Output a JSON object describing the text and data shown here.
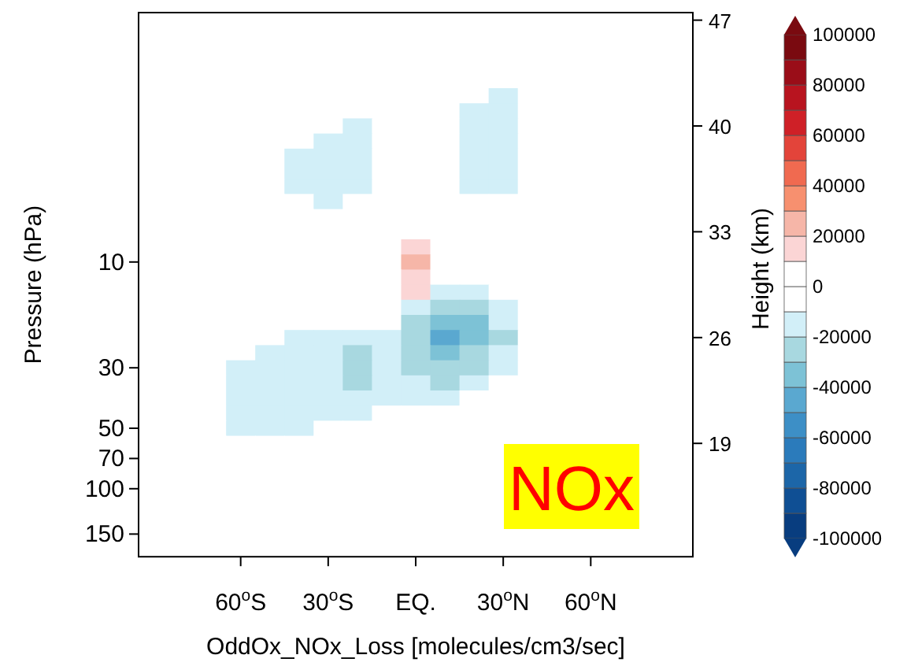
{
  "chart_data": {
    "type": "heatmap",
    "xlabel": "OddOx_NOx_Loss [molecules/cm3/sec]",
    "ylabel": "Pressure (hPa)",
    "y2label": "Height (km)",
    "annotations": [
      "NOx"
    ],
    "categories": [
      null,
      null,
      null,
      "60$^{o}$S",
      null,
      null,
      "30$^{o}$S",
      null,
      null,
      "EQ.",
      null,
      null,
      "30$^{o}$N",
      null,
      null,
      "60$^{o}$N",
      null,
      null,
      null
    ],
    "y_categories": [
      null,
      null,
      null,
      null,
      null,
      null,
      null,
      null,
      null,
      null,
      null,
      null,
      null,
      null,
      null,
      null,
      "10",
      null,
      null,
      null,
      null,
      null,
      null,
      "30",
      null,
      null,
      null,
      "50",
      null,
      "70",
      null,
      "100",
      null,
      null,
      "150",
      null
    ],
    "y2_categories": [
      "47",
      null,
      null,
      null,
      null,
      null,
      null,
      "40",
      null,
      null,
      null,
      null,
      null,
      null,
      "33",
      null,
      null,
      null,
      null,
      null,
      null,
      "26",
      null,
      null,
      null,
      null,
      null,
      null,
      "19",
      null,
      null,
      null,
      null,
      null,
      null,
      null
    ],
    "clim": [
      -100000,
      100000
    ],
    "cticks": [
      -100000,
      -80000,
      -60000,
      -40000,
      -20000,
      0,
      20000,
      40000,
      60000,
      80000,
      100000
    ],
    "colors": [
      "#083d7f",
      "#0f4f94",
      "#1c66a8",
      "#2b7bbb",
      "#3d8fc6",
      "#5aa8d0",
      "#7dc2d6",
      "#a8d8e0",
      "#d2eff8",
      "#ffffff",
      "#ffffff",
      "#fbd5d5",
      "#f6b6a8",
      "#f7906f",
      "#f06a50",
      "#e3443a",
      "#cf2027",
      "#b8141f",
      "#9a0d18",
      "#7a0a10"
    ],
    "cells": [
      [
        0,
        0,
        0,
        0,
        0,
        0,
        0,
        0,
        0,
        0,
        0,
        0,
        0,
        0,
        0,
        0,
        0,
        0,
        0
      ],
      [
        0,
        0,
        0,
        0,
        0,
        0,
        0,
        0,
        0,
        0,
        0,
        0,
        0,
        0,
        0,
        0,
        0,
        0,
        0
      ],
      [
        0,
        0,
        0,
        0,
        0,
        0,
        0,
        0,
        0,
        0,
        0,
        0,
        0,
        0,
        0,
        0,
        0,
        0,
        0
      ],
      [
        0,
        0,
        0,
        0,
        0,
        0,
        0,
        0,
        0,
        0,
        0,
        0,
        0,
        0,
        0,
        0,
        0,
        0,
        0
      ],
      [
        0,
        0,
        0,
        0,
        0,
        0,
        0,
        0,
        0,
        0,
        0,
        0,
        0,
        0,
        0,
        0,
        0,
        0,
        0
      ],
      [
        0,
        0,
        0,
        0,
        0,
        0,
        0,
        0,
        0,
        0,
        0,
        0,
        -15000,
        0,
        0,
        0,
        0,
        0,
        0
      ],
      [
        0,
        0,
        0,
        0,
        0,
        0,
        0,
        0,
        0,
        0,
        0,
        -15000,
        -15000,
        0,
        0,
        0,
        0,
        0,
        0
      ],
      [
        0,
        0,
        0,
        0,
        0,
        0,
        0,
        -15000,
        0,
        0,
        0,
        -15000,
        -15000,
        0,
        0,
        0,
        0,
        0,
        0
      ],
      [
        0,
        0,
        0,
        0,
        0,
        0,
        -15000,
        -15000,
        0,
        0,
        0,
        -15000,
        -15000,
        0,
        0,
        0,
        0,
        0,
        0
      ],
      [
        0,
        0,
        0,
        0,
        0,
        -15000,
        -15000,
        -15000,
        0,
        0,
        0,
        -15000,
        -15000,
        0,
        0,
        0,
        0,
        0,
        0
      ],
      [
        0,
        0,
        0,
        0,
        0,
        -15000,
        -15000,
        -15000,
        0,
        0,
        0,
        -15000,
        -15000,
        0,
        0,
        0,
        0,
        0,
        0
      ],
      [
        0,
        0,
        0,
        0,
        0,
        -15000,
        -15000,
        -15000,
        0,
        0,
        0,
        -15000,
        -15000,
        0,
        0,
        0,
        0,
        0,
        0
      ],
      [
        0,
        0,
        0,
        0,
        0,
        0,
        -15000,
        0,
        0,
        0,
        0,
        0,
        0,
        0,
        0,
        0,
        0,
        0,
        0
      ],
      [
        0,
        0,
        0,
        0,
        0,
        0,
        0,
        0,
        0,
        0,
        0,
        0,
        0,
        0,
        0,
        0,
        0,
        0,
        0
      ],
      [
        0,
        0,
        0,
        0,
        0,
        0,
        0,
        0,
        0,
        0,
        0,
        0,
        0,
        0,
        0,
        0,
        0,
        0,
        0
      ],
      [
        0,
        0,
        0,
        0,
        0,
        0,
        0,
        0,
        0,
        15000,
        0,
        0,
        0,
        0,
        0,
        0,
        0,
        0,
        0
      ],
      [
        0,
        0,
        0,
        0,
        0,
        0,
        0,
        0,
        0,
        25000,
        0,
        0,
        0,
        0,
        0,
        0,
        0,
        0,
        0
      ],
      [
        0,
        0,
        0,
        0,
        0,
        0,
        0,
        0,
        0,
        15000,
        0,
        0,
        0,
        0,
        0,
        0,
        0,
        0,
        0
      ],
      [
        0,
        0,
        0,
        0,
        0,
        0,
        0,
        0,
        0,
        15000,
        -15000,
        -15000,
        0,
        0,
        0,
        0,
        0,
        0,
        0
      ],
      [
        0,
        0,
        0,
        0,
        0,
        0,
        0,
        0,
        0,
        -15000,
        -25000,
        -25000,
        -15000,
        0,
        0,
        0,
        0,
        0,
        0
      ],
      [
        0,
        0,
        0,
        0,
        0,
        0,
        0,
        0,
        0,
        -25000,
        -35000,
        -35000,
        -15000,
        0,
        0,
        0,
        0,
        0,
        0
      ],
      [
        0,
        0,
        0,
        0,
        0,
        -15000,
        -15000,
        -15000,
        -15000,
        -25000,
        -45000,
        -35000,
        -25000,
        0,
        0,
        0,
        0,
        0,
        0
      ],
      [
        0,
        0,
        0,
        0,
        -15000,
        -15000,
        -15000,
        -25000,
        -15000,
        -25000,
        -35000,
        -25000,
        -15000,
        0,
        0,
        0,
        0,
        0,
        0
      ],
      [
        0,
        0,
        0,
        -15000,
        -15000,
        -15000,
        -15000,
        -25000,
        -15000,
        -25000,
        -25000,
        -25000,
        -15000,
        0,
        0,
        0,
        0,
        0,
        0
      ],
      [
        0,
        0,
        0,
        -15000,
        -15000,
        -15000,
        -15000,
        -25000,
        -15000,
        -15000,
        -25000,
        -15000,
        0,
        0,
        0,
        0,
        0,
        0,
        0
      ],
      [
        0,
        0,
        0,
        -15000,
        -15000,
        -15000,
        -15000,
        -15000,
        -15000,
        -15000,
        -15000,
        0,
        0,
        0,
        0,
        0,
        0,
        0,
        0
      ],
      [
        0,
        0,
        0,
        -15000,
        -15000,
        -15000,
        -15000,
        -15000,
        0,
        0,
        0,
        0,
        0,
        0,
        0,
        0,
        0,
        0,
        0
      ],
      [
        0,
        0,
        0,
        -15000,
        -15000,
        -15000,
        0,
        0,
        0,
        0,
        0,
        0,
        0,
        0,
        0,
        0,
        0,
        0,
        0
      ],
      [
        0,
        0,
        0,
        0,
        0,
        0,
        0,
        0,
        0,
        0,
        0,
        0,
        0,
        0,
        0,
        0,
        0,
        0,
        0
      ],
      [
        0,
        0,
        0,
        0,
        0,
        0,
        0,
        0,
        0,
        0,
        0,
        0,
        0,
        null,
        null,
        null,
        null,
        0,
        0
      ],
      [
        0,
        0,
        0,
        0,
        0,
        0,
        0,
        0,
        0,
        0,
        0,
        0,
        0,
        null,
        null,
        null,
        null,
        0,
        0
      ],
      [
        0,
        0,
        0,
        0,
        0,
        0,
        0,
        0,
        0,
        0,
        0,
        0,
        0,
        null,
        null,
        null,
        null,
        0,
        0
      ],
      [
        0,
        0,
        0,
        0,
        0,
        0,
        0,
        0,
        0,
        0,
        0,
        0,
        0,
        null,
        null,
        null,
        null,
        0,
        0
      ],
      [
        0,
        0,
        0,
        0,
        0,
        0,
        0,
        0,
        0,
        0,
        0,
        0,
        0,
        null,
        null,
        null,
        null,
        0,
        0
      ],
      [
        0,
        0,
        0,
        0,
        0,
        0,
        0,
        0,
        0,
        0,
        0,
        0,
        0,
        0,
        0,
        0,
        0,
        0,
        0
      ],
      [
        0,
        0,
        0,
        0,
        0,
        0,
        0,
        0,
        0,
        0,
        0,
        0,
        0,
        0,
        0,
        0,
        0,
        0,
        0
      ]
    ]
  }
}
